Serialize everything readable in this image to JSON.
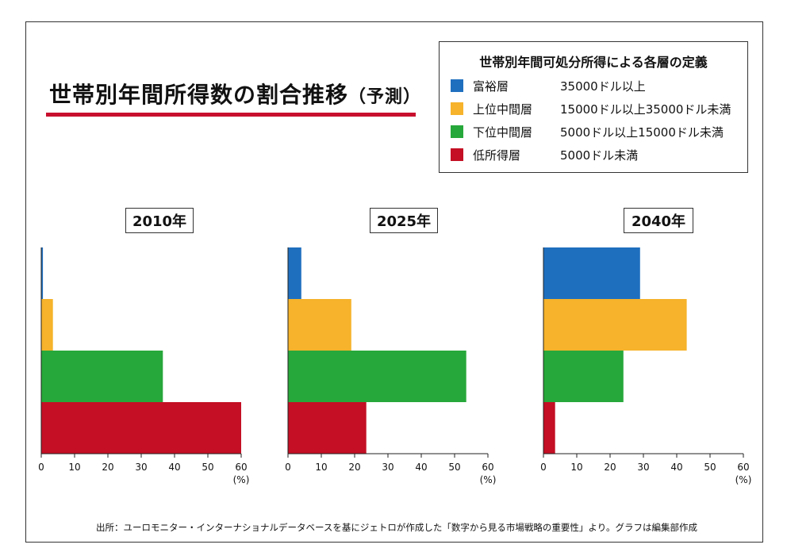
{
  "title": {
    "main": "世帯別年間所得数の割合推移",
    "sub": "（予測）"
  },
  "legend": {
    "title": "世帯別年間可処分所得による各層の定義",
    "items": [
      {
        "name": "富裕層",
        "definition": "35000ドル以上",
        "color": "#1f6fbf"
      },
      {
        "name": "上位中間層",
        "definition": "15000ドル以上35000ドル未満",
        "color": "#f6b32b"
      },
      {
        "name": "下位中間層",
        "definition": "5000ドル以上15000ドル未満",
        "color": "#27a83a"
      },
      {
        "name": "低所得層",
        "definition": "5000ドル未満",
        "color": "#c40f24"
      }
    ]
  },
  "source": "出所：ユーロモニター・インターナショナルデータベースを基にジェトロが作成した「数字から見る市場戦略の重要性」より。グラフは編集部作成",
  "chart_data": [
    {
      "type": "bar",
      "orientation": "horizontal",
      "title": "2010年",
      "categories": [
        "富裕層",
        "上位中間層",
        "下位中間層",
        "低所得層"
      ],
      "values": [
        0.5,
        3.5,
        36.5,
        60
      ],
      "xlim": [
        0,
        60
      ],
      "xticks": [
        "0",
        "10",
        "20",
        "30",
        "40",
        "50",
        "60"
      ],
      "xlabel": "(%)"
    },
    {
      "type": "bar",
      "orientation": "horizontal",
      "title": "2025年",
      "categories": [
        "富裕層",
        "上位中間層",
        "下位中間層",
        "低所得層"
      ],
      "values": [
        4,
        19,
        53.5,
        23.5
      ],
      "xlim": [
        0,
        60
      ],
      "xticks": [
        "0",
        "10",
        "20",
        "30",
        "40",
        "50",
        "60"
      ],
      "xlabel": "(%)"
    },
    {
      "type": "bar",
      "orientation": "horizontal",
      "title": "2040年",
      "categories": [
        "富裕層",
        "上位中間層",
        "下位中間層",
        "低所得層"
      ],
      "values": [
        29,
        43,
        24,
        3.5
      ],
      "xlim": [
        0,
        60
      ],
      "xticks": [
        "0",
        "10",
        "20",
        "30",
        "40",
        "50",
        "60"
      ],
      "xlabel": "(%)"
    }
  ]
}
